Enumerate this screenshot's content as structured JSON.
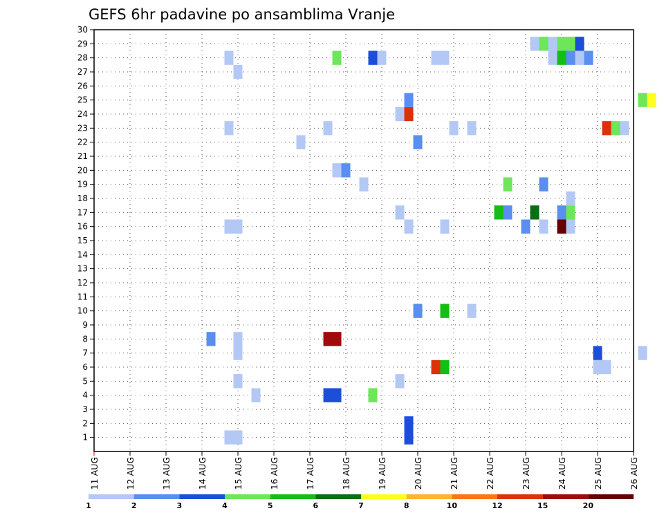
{
  "chart_data": {
    "type": "heatmap",
    "title": "GEFS 6hr padavine po ansamblima Vranje",
    "x_ticks": [
      "11 AUG",
      "12 AUG",
      "13 AUG",
      "14 AUG",
      "15 AUG",
      "16 AUG",
      "17 AUG",
      "18 AUG",
      "19 AUG",
      "20 AUG",
      "21 AUG",
      "22 AUG",
      "23 AUG",
      "24 AUG",
      "25 AUG",
      "26 AUG"
    ],
    "y_ticks": [
      "1",
      "2",
      "3",
      "4",
      "5",
      "6",
      "7",
      "8",
      "9",
      "10",
      "11",
      "12",
      "13",
      "14",
      "15",
      "16",
      "17",
      "18",
      "19",
      "20",
      "21",
      "22",
      "23",
      "24",
      "25",
      "26",
      "27",
      "28",
      "29",
      "30"
    ],
    "x_range_days": [
      0,
      15
    ],
    "y_range": [
      0,
      30
    ],
    "grid": true,
    "legend": {
      "placement": "bottom",
      "labels": [
        "1",
        "2",
        "3",
        "4",
        "5",
        "6",
        "7",
        "8",
        "10",
        "12",
        "15",
        "20"
      ],
      "colors": [
        "#b4c8f5",
        "#5a8ef0",
        "#1c4fd8",
        "#6ee65a",
        "#14be14",
        "#0a6e14",
        "#ffff1e",
        "#ffb432",
        "#fa7814",
        "#dc320a",
        "#a00a0a",
        "#640000"
      ]
    },
    "cells_note": "each cell: [day offset from 11 AUG, member, color class index 0-11]",
    "cells": [
      [
        3.25,
        8,
        1
      ],
      [
        3.75,
        1,
        0
      ],
      [
        3.75,
        16,
        0
      ],
      [
        3.75,
        23,
        0
      ],
      [
        3.75,
        28,
        0
      ],
      [
        4.0,
        1,
        0
      ],
      [
        4.0,
        5,
        0
      ],
      [
        4.0,
        7,
        0
      ],
      [
        4.0,
        8,
        0
      ],
      [
        4.0,
        16,
        0
      ],
      [
        4.0,
        27,
        0
      ],
      [
        4.5,
        4,
        0
      ],
      [
        5.75,
        22,
        0
      ],
      [
        6.5,
        23,
        0
      ],
      [
        6.5,
        4,
        2
      ],
      [
        6.75,
        4,
        2
      ],
      [
        6.5,
        8,
        10
      ],
      [
        6.75,
        8,
        10
      ],
      [
        6.75,
        20,
        0
      ],
      [
        6.75,
        28,
        3
      ],
      [
        7.0,
        20,
        1
      ],
      [
        7.5,
        19,
        0
      ],
      [
        7.75,
        4,
        3
      ],
      [
        7.75,
        28,
        2
      ],
      [
        8.0,
        28,
        0
      ],
      [
        8.5,
        5,
        0
      ],
      [
        8.5,
        17,
        0
      ],
      [
        8.5,
        24,
        0
      ],
      [
        8.75,
        2,
        2
      ],
      [
        8.75,
        1,
        2
      ],
      [
        8.75,
        16,
        0
      ],
      [
        8.75,
        24,
        9
      ],
      [
        8.75,
        25,
        1
      ],
      [
        9.0,
        10,
        1
      ],
      [
        9.0,
        22,
        1
      ],
      [
        9.5,
        6,
        9
      ],
      [
        9.5,
        28,
        0
      ],
      [
        9.75,
        6,
        4
      ],
      [
        9.75,
        10,
        4
      ],
      [
        9.75,
        16,
        0
      ],
      [
        9.75,
        28,
        0
      ],
      [
        10.0,
        23,
        0
      ],
      [
        10.5,
        10,
        0
      ],
      [
        10.5,
        23,
        0
      ],
      [
        11.25,
        17,
        4
      ],
      [
        11.5,
        17,
        1
      ],
      [
        11.5,
        19,
        3
      ],
      [
        12.0,
        16,
        1
      ],
      [
        12.25,
        17,
        5
      ],
      [
        12.25,
        29,
        0
      ],
      [
        12.5,
        16,
        0
      ],
      [
        12.5,
        19,
        1
      ],
      [
        12.5,
        29,
        3
      ],
      [
        12.75,
        28,
        0
      ],
      [
        12.75,
        29,
        0
      ],
      [
        13.0,
        17,
        1
      ],
      [
        13.0,
        16,
        11
      ],
      [
        13.0,
        28,
        4
      ],
      [
        13.0,
        29,
        3
      ],
      [
        13.25,
        16,
        0
      ],
      [
        13.25,
        17,
        3
      ],
      [
        13.25,
        18,
        0
      ],
      [
        13.25,
        28,
        1
      ],
      [
        13.25,
        29,
        3
      ],
      [
        13.5,
        28,
        0
      ],
      [
        13.5,
        29,
        2
      ],
      [
        13.75,
        28,
        1
      ],
      [
        14.0,
        7,
        2
      ],
      [
        14.0,
        6,
        0
      ],
      [
        14.25,
        6,
        0
      ],
      [
        14.25,
        23,
        9
      ],
      [
        14.5,
        23,
        3
      ],
      [
        14.75,
        23,
        0
      ],
      [
        15.25,
        7,
        0
      ],
      [
        15.25,
        25,
        3
      ],
      [
        15.5,
        25,
        6
      ]
    ]
  }
}
